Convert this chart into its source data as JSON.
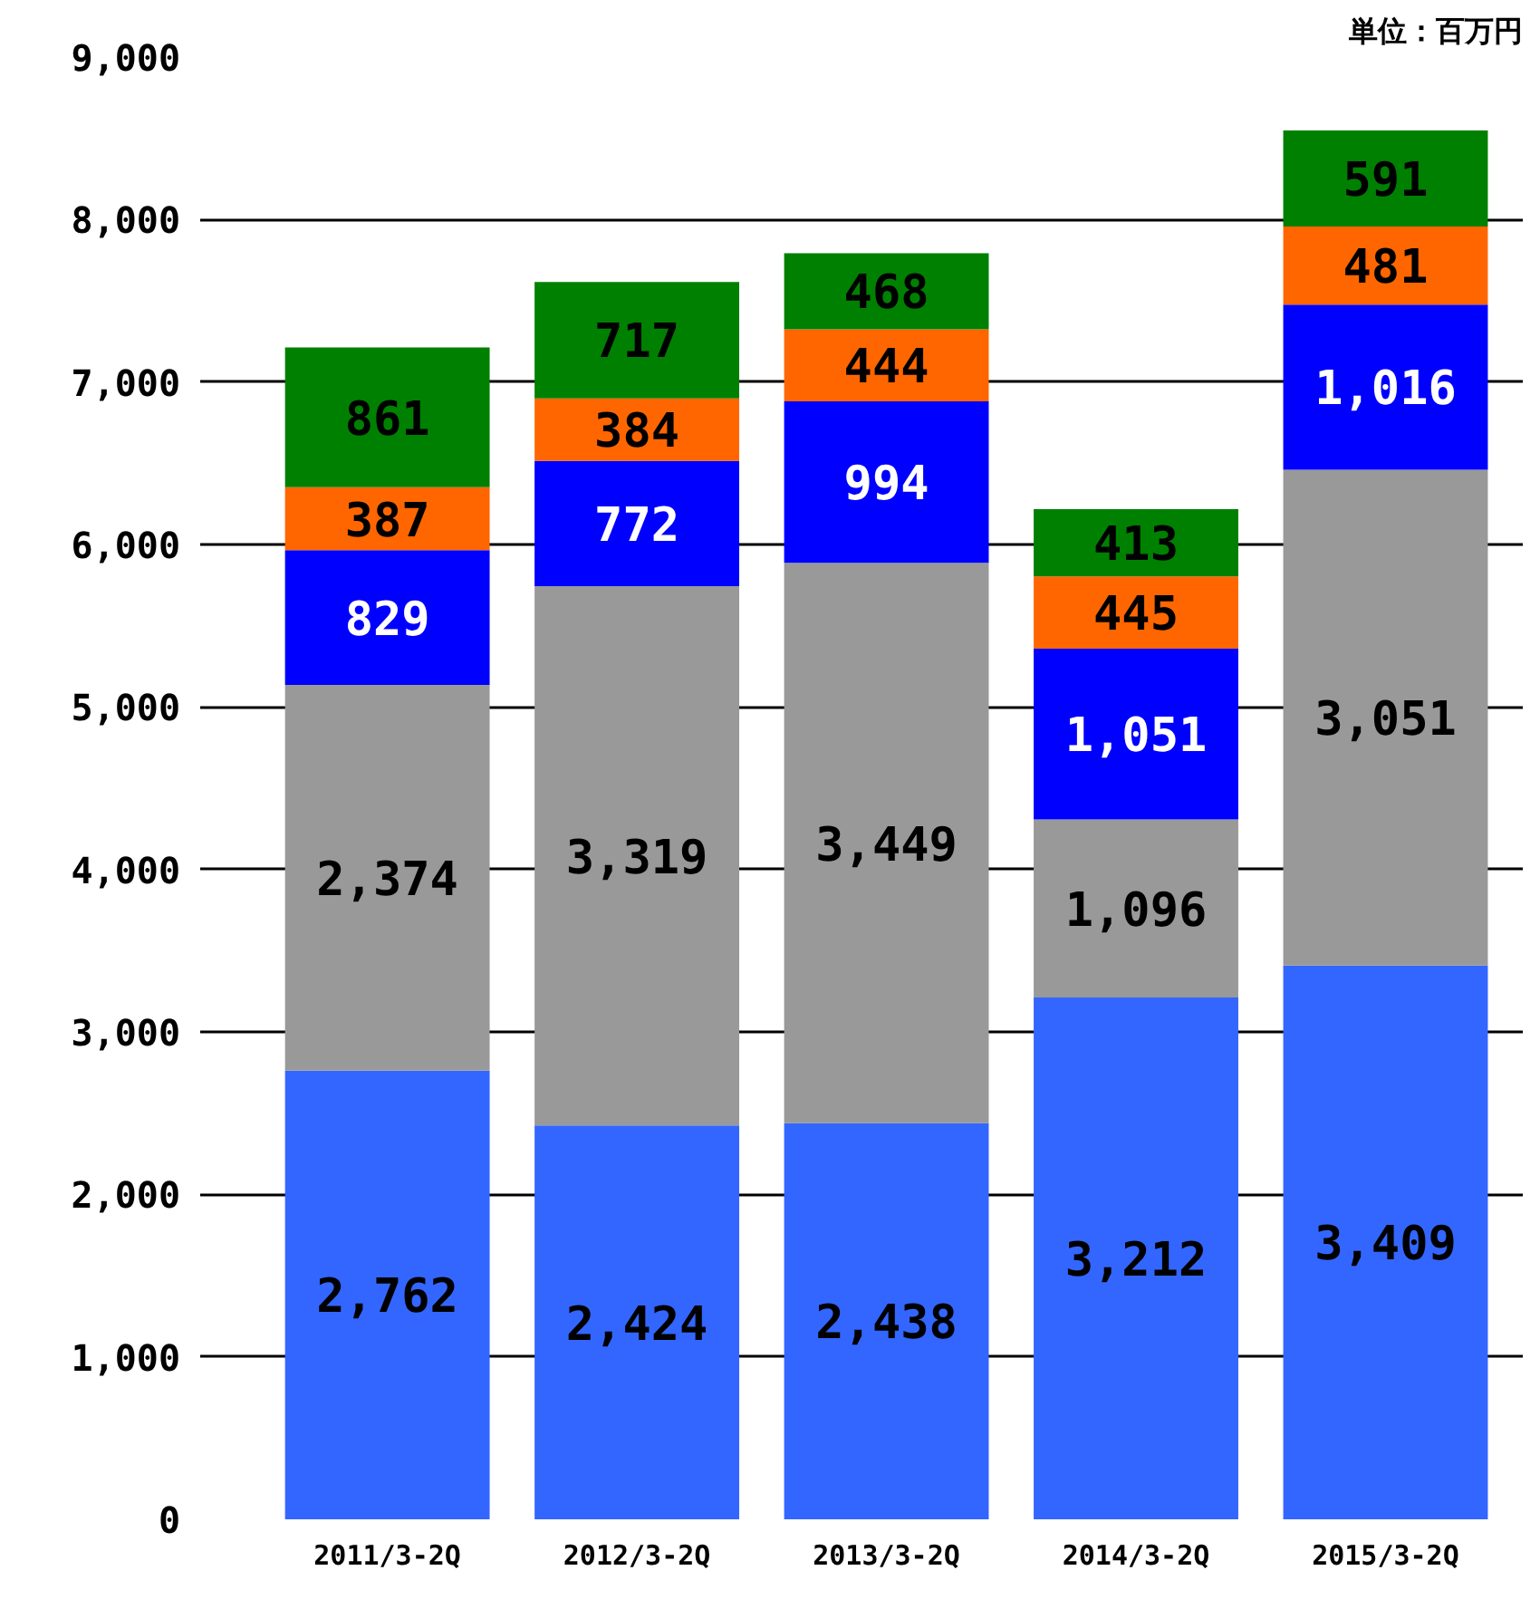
{
  "chart_data": {
    "type": "bar",
    "stacked": true,
    "categories": [
      "2011/3-2Q",
      "2012/3-2Q",
      "2013/3-2Q",
      "2014/3-2Q",
      "2015/3-2Q"
    ],
    "series": [
      {
        "color": "#3366ff",
        "values": [
          2762,
          2424,
          2438,
          3212,
          3409
        ],
        "value_labels": [
          "2,762",
          "2,424",
          "2,438",
          "3,212",
          "3,409"
        ]
      },
      {
        "color": "#999999",
        "values": [
          2374,
          3319,
          3449,
          1096,
          3051
        ],
        "value_labels": [
          "2,374",
          "3,319",
          "3,449",
          "1,096",
          "3,051"
        ]
      },
      {
        "color": "#0000ff",
        "values": [
          829,
          772,
          994,
          1051,
          1016
        ],
        "value_labels": [
          "829",
          "772",
          "994",
          "1,051",
          "1,016"
        ]
      },
      {
        "color": "#ff6600",
        "values": [
          387,
          384,
          444,
          445,
          481
        ],
        "value_labels": [
          "387",
          "384",
          "444",
          "445",
          "481"
        ]
      },
      {
        "color": "#008000",
        "values": [
          861,
          717,
          468,
          413,
          591
        ],
        "value_labels": [
          "861",
          "717",
          "468",
          "413",
          "591"
        ]
      }
    ],
    "ylim": [
      0,
      9000
    ],
    "yticks": [
      0,
      {
        "value": 1000,
        "label": "1,000"
      },
      {
        "value": 2000,
        "label": "2,000"
      },
      {
        "value": 3000,
        "label": "3,000"
      },
      {
        "value": 4000,
        "label": "4,000"
      },
      {
        "value": 5000,
        "label": "5,000"
      },
      {
        "value": 6000,
        "label": "6,000"
      },
      {
        "value": 7000,
        "label": "7,000"
      },
      {
        "value": 8000,
        "label": "8,000"
      },
      {
        "value": 9000,
        "label": "9,000"
      }
    ],
    "grid": "y",
    "annotations": [
      "単位：百万円"
    ]
  }
}
